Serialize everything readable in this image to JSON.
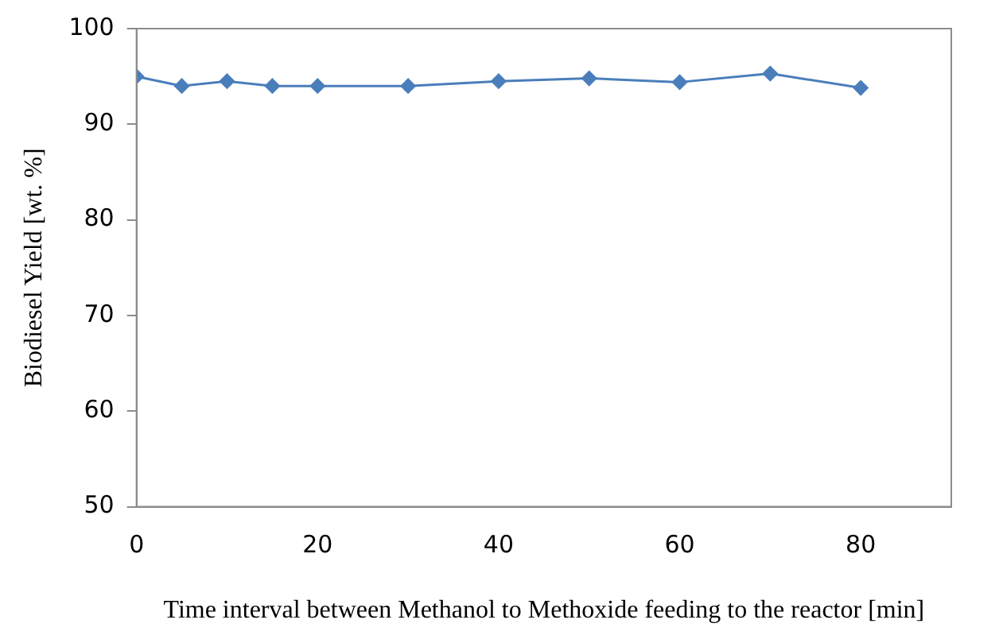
{
  "chart_data": {
    "type": "line",
    "xlabel": "Time interval between Methanol to Methoxide feeding to the reactor [min]",
    "ylabel": "Biodiesel Yield [wt. %]",
    "x": [
      0,
      5,
      10,
      15,
      20,
      30,
      40,
      50,
      60,
      70,
      80
    ],
    "series": [
      {
        "color": "#4a7ebb",
        "values": [
          95.0,
          94.0,
          94.5,
          94.0,
          94.0,
          94.0,
          94.5,
          94.8,
          94.4,
          95.3,
          93.8
        ]
      }
    ],
    "xlim": [
      0,
      90
    ],
    "xticks": [
      0,
      20,
      40,
      60,
      80
    ],
    "ylim": [
      50,
      100
    ],
    "yticks": [
      50,
      60,
      70,
      80,
      90,
      100
    ],
    "grid": false,
    "legend": false,
    "marker": "diamond",
    "line_style": "solid"
  }
}
